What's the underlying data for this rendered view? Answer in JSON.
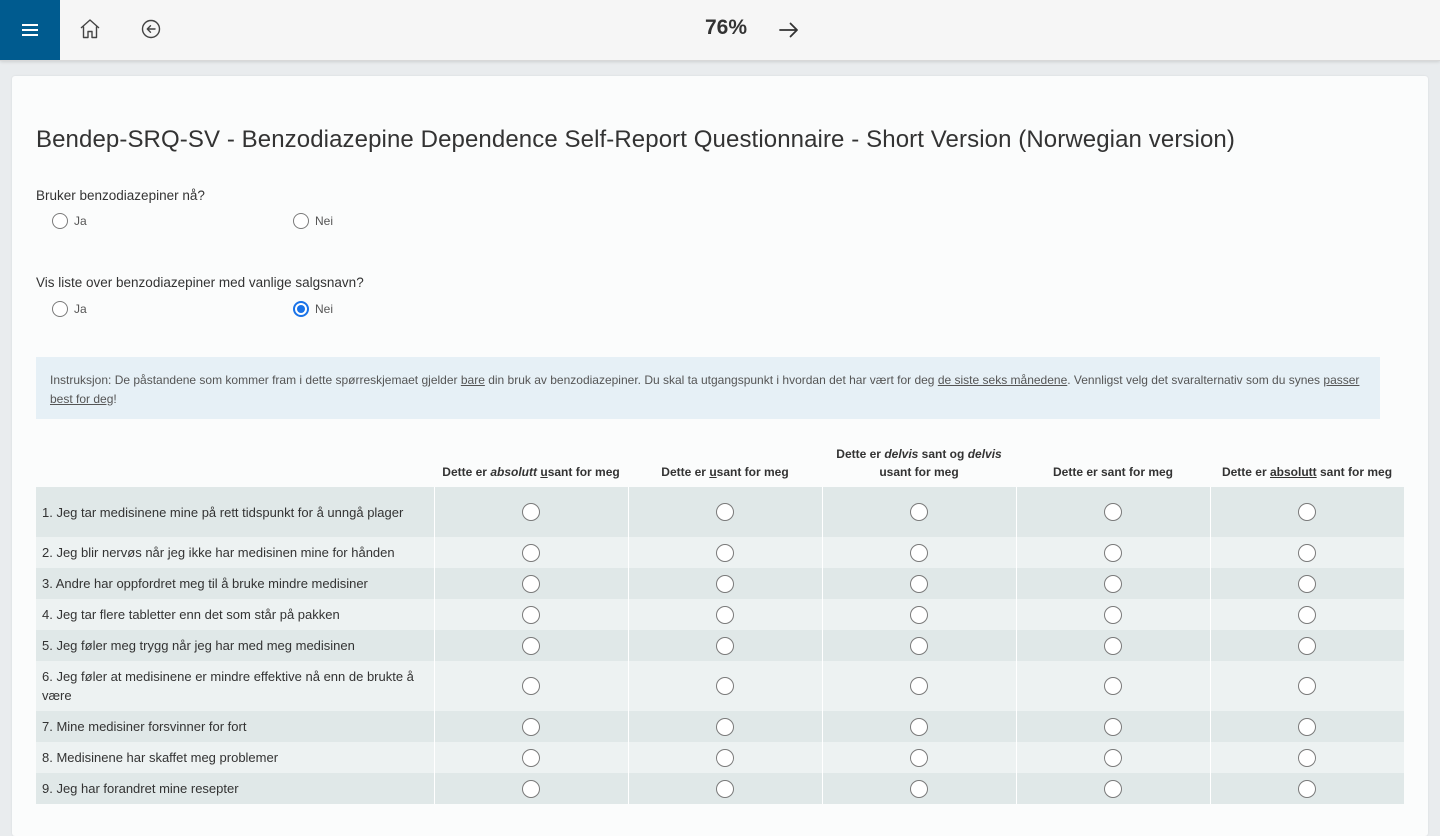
{
  "toolbar": {
    "menu_icon": "hamburger-menu-icon",
    "home_icon": "home-icon",
    "back_icon": "back-arrow-circle-icon",
    "progress": "76%",
    "next_icon": "arrow-right-icon",
    "accent_color": "#005b8f"
  },
  "page": {
    "title": "Bendep-SRQ-SV - Benzodiazepine Dependence Self-Report Questionnaire - Short Version (Norwegian version)"
  },
  "questions": [
    {
      "label": "Bruker benzodiazepiner nå?",
      "options": [
        "Ja",
        "Nei"
      ],
      "selected": null
    },
    {
      "label": "Vis liste over benzodiazepiner med vanlige salgsnavn?",
      "options": [
        "Ja",
        "Nei"
      ],
      "selected": "Nei"
    }
  ],
  "instructions": {
    "t1": "Instruksjon: De påstandene som kommer fram i dette spørreskjemaet gjelder ",
    "u1": "bare",
    "t2": " din bruk av benzodiazepiner. Du skal ta utgangspunkt i hvordan det har vært for deg ",
    "u2": "de siste seks månedene",
    "t3": ". Vennligst velg det svaralternativ som du synes ",
    "u3": "passer best for deg",
    "t4": "!"
  },
  "matrix": {
    "columns": [
      {
        "a": "Dette er ",
        "b": "absolutt",
        "c": " ",
        "d": "u",
        "e": "sant for meg"
      },
      {
        "a": "Dette er ",
        "b": "",
        "c": "",
        "d": "u",
        "e": "sant for meg"
      },
      {
        "a": "Dette er ",
        "b": "delvis",
        "c": " sant og ",
        "d": "delvis",
        "e": " usant for meg"
      },
      {
        "a": "Dette er sant for meg",
        "b": "",
        "c": "",
        "d": "",
        "e": ""
      },
      {
        "a": "Dette er ",
        "b": "absolutt",
        "c": " sant for meg",
        "d": "",
        "e": ""
      }
    ],
    "rows": [
      "1. Jeg tar medisinene mine på rett tidspunkt for å unngå plager",
      "2. Jeg blir nervøs når jeg ikke har medisinen mine for hånden",
      "3. Andre har oppfordret meg til å bruke mindre medisiner",
      "4. Jeg tar flere tabletter enn det som står på pakken",
      "5. Jeg føler meg trygg når jeg har med meg medisinen",
      "6. Jeg føler at medisinene er mindre effektive nå enn de brukte å være",
      "7. Mine medisiner forsvinner for fort",
      "8. Medisinene har skaffet meg problemer",
      "9. Jeg har forandret mine resepter"
    ]
  }
}
